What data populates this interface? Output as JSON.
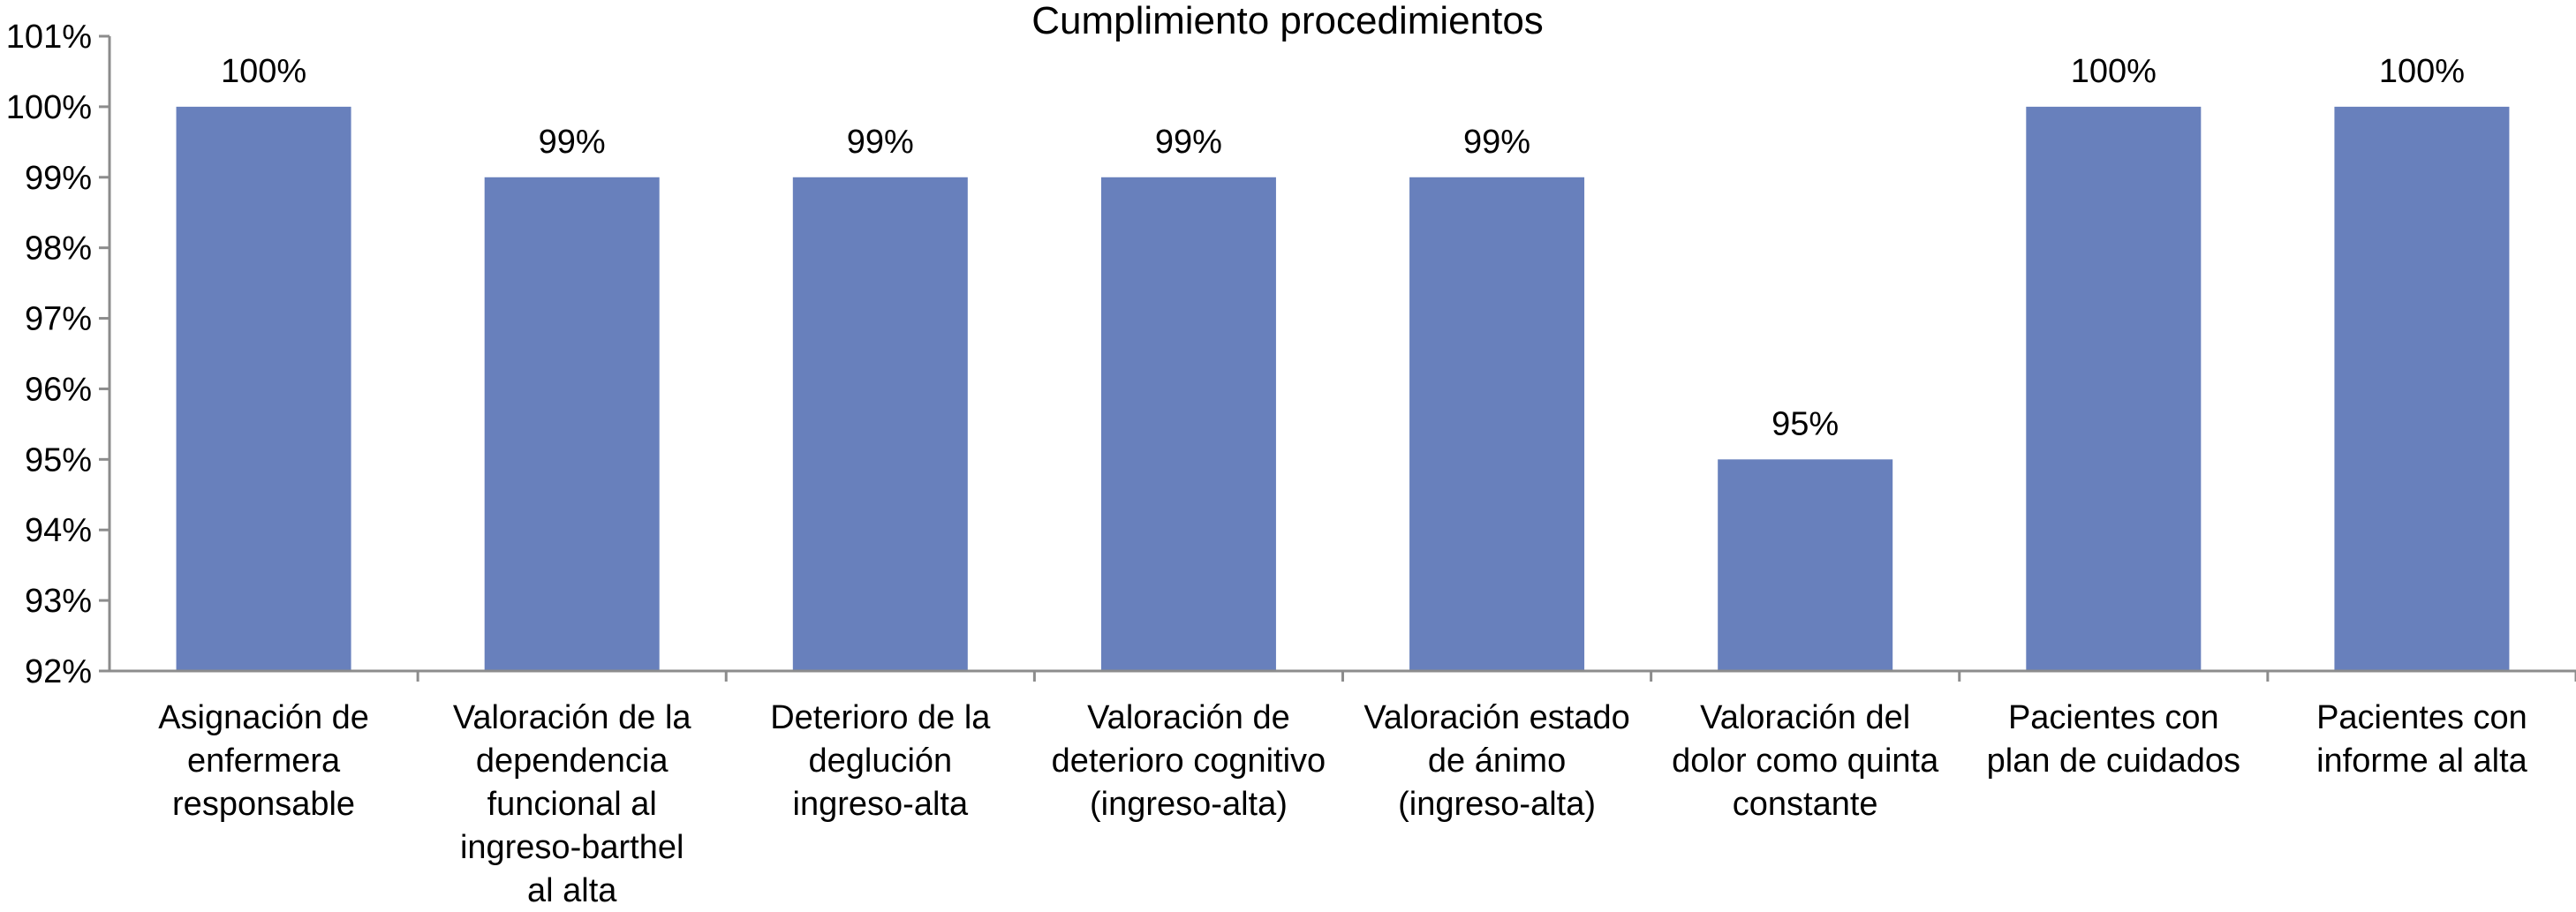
{
  "chart_data": {
    "type": "bar",
    "title": "Cumplimiento procedimientos",
    "xlabel": "",
    "ylabel": "",
    "ylim": [
      92,
      101
    ],
    "yticks": [
      "92%",
      "93%",
      "94%",
      "95%",
      "96%",
      "97%",
      "98%",
      "99%",
      "100%",
      "101%"
    ],
    "grid": false,
    "legend": "none",
    "bar_color": "#6880BC",
    "categories": [
      [
        "Asignación de",
        "enfermera",
        "responsable"
      ],
      [
        "Valoración de la",
        "dependencia",
        "funcional al",
        "ingreso-barthel",
        "al alta"
      ],
      [
        "Deterioro de la",
        "deglución",
        "ingreso-alta"
      ],
      [
        "Valoración de",
        "deterioro cognitivo",
        "(ingreso-alta)"
      ],
      [
        "Valoración estado",
        "de ánimo",
        "(ingreso-alta)"
      ],
      [
        "Valoración del",
        "dolor como quinta",
        "constante"
      ],
      [
        "Pacientes con",
        "plan de cuidados"
      ],
      [
        "Pacientes con",
        "informe al alta"
      ]
    ],
    "values": [
      100,
      99,
      99,
      99,
      99,
      95,
      100,
      100
    ],
    "data_labels": [
      "100%",
      "99%",
      "99%",
      "99%",
      "99%",
      "95%",
      "100%",
      "100%"
    ]
  }
}
